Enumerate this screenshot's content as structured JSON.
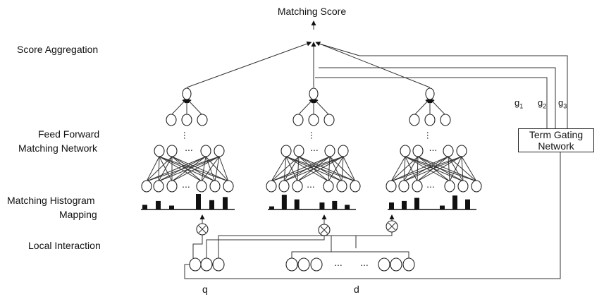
{
  "title": "Matching Score",
  "labels": {
    "score_aggregation": "Score Aggregation",
    "feed_forward_line1": "Feed Forward",
    "feed_forward_line2": "Matching Network",
    "histogram_line1": "Matching Histogram",
    "histogram_line2": "Mapping",
    "local_interaction": "Local Interaction",
    "q": "q",
    "d": "d"
  },
  "term_gating": {
    "line1": "Term Gating",
    "line2": "Network",
    "gates": [
      {
        "base": "g",
        "sub": "1"
      },
      {
        "base": "g",
        "sub": "2"
      },
      {
        "base": "g",
        "sub": "3"
      }
    ]
  },
  "ellipsis": "...",
  "histograms": [
    [
      0.3,
      0.55,
      0.25,
      0,
      1.0,
      0.6,
      0.8
    ],
    [
      0.2,
      0.95,
      0.65,
      0,
      0.45,
      0.55,
      0.3
    ],
    [
      0.45,
      0.55,
      0.75,
      0,
      0.25,
      0.9,
      0.65
    ]
  ]
}
